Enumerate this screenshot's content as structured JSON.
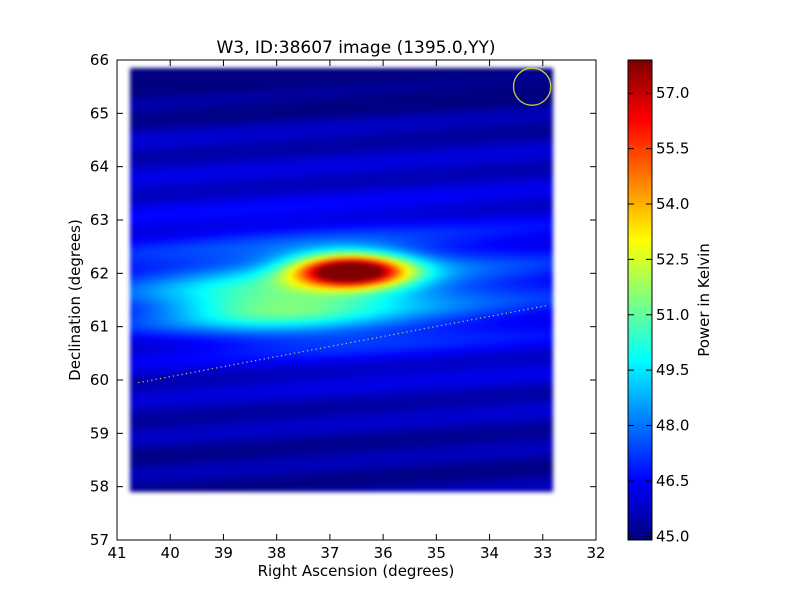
{
  "chart_data": {
    "type": "heatmap",
    "title": "W3, ID:38607 image (1395.0,YY)",
    "xlabel": "Right Ascension (degrees)",
    "ylabel": "Declination (degrees)",
    "xlim": [
      41,
      32
    ],
    "ylim": [
      57,
      66
    ],
    "x_ticks": [
      "41",
      "40",
      "39",
      "38",
      "37",
      "36",
      "35",
      "34",
      "33",
      "32"
    ],
    "y_ticks": [
      "57",
      "58",
      "59",
      "60",
      "61",
      "62",
      "63",
      "64",
      "65",
      "66"
    ],
    "colorbar": {
      "label": "Power in Kelvin",
      "range": [
        44.9,
        57.9
      ],
      "ticks": [
        "45.0",
        "46.5",
        "48.0",
        "49.5",
        "51.0",
        "52.5",
        "54.0",
        "55.5",
        "57.0"
      ],
      "colormap": "jet"
    },
    "map_extent": {
      "ra": [
        40.75,
        32.8
      ],
      "dec": [
        57.9,
        65.85
      ]
    },
    "background_level": 46.2,
    "sources": [
      {
        "ra": 36.6,
        "dec": 62.05,
        "peak": 57.8,
        "sigma_ra": 0.75,
        "sigma_dec": 0.22
      },
      {
        "ra": 38.2,
        "dec": 61.4,
        "peak": 49.5,
        "sigma_ra": 1.5,
        "sigma_dec": 0.35
      },
      {
        "ra": 36.9,
        "dec": 61.7,
        "peak": 48.6,
        "sigma_ra": 2.4,
        "sigma_dec": 0.7
      }
    ],
    "overlays": {
      "dotted_line": {
        "ra": [
          40.6,
          32.9
        ],
        "dec": [
          59.95,
          61.4
        ],
        "color": "#c8d35a"
      },
      "circle": {
        "ra": 33.2,
        "dec": 65.5,
        "radius_deg": 0.35,
        "color": "#c8c84a"
      }
    }
  }
}
